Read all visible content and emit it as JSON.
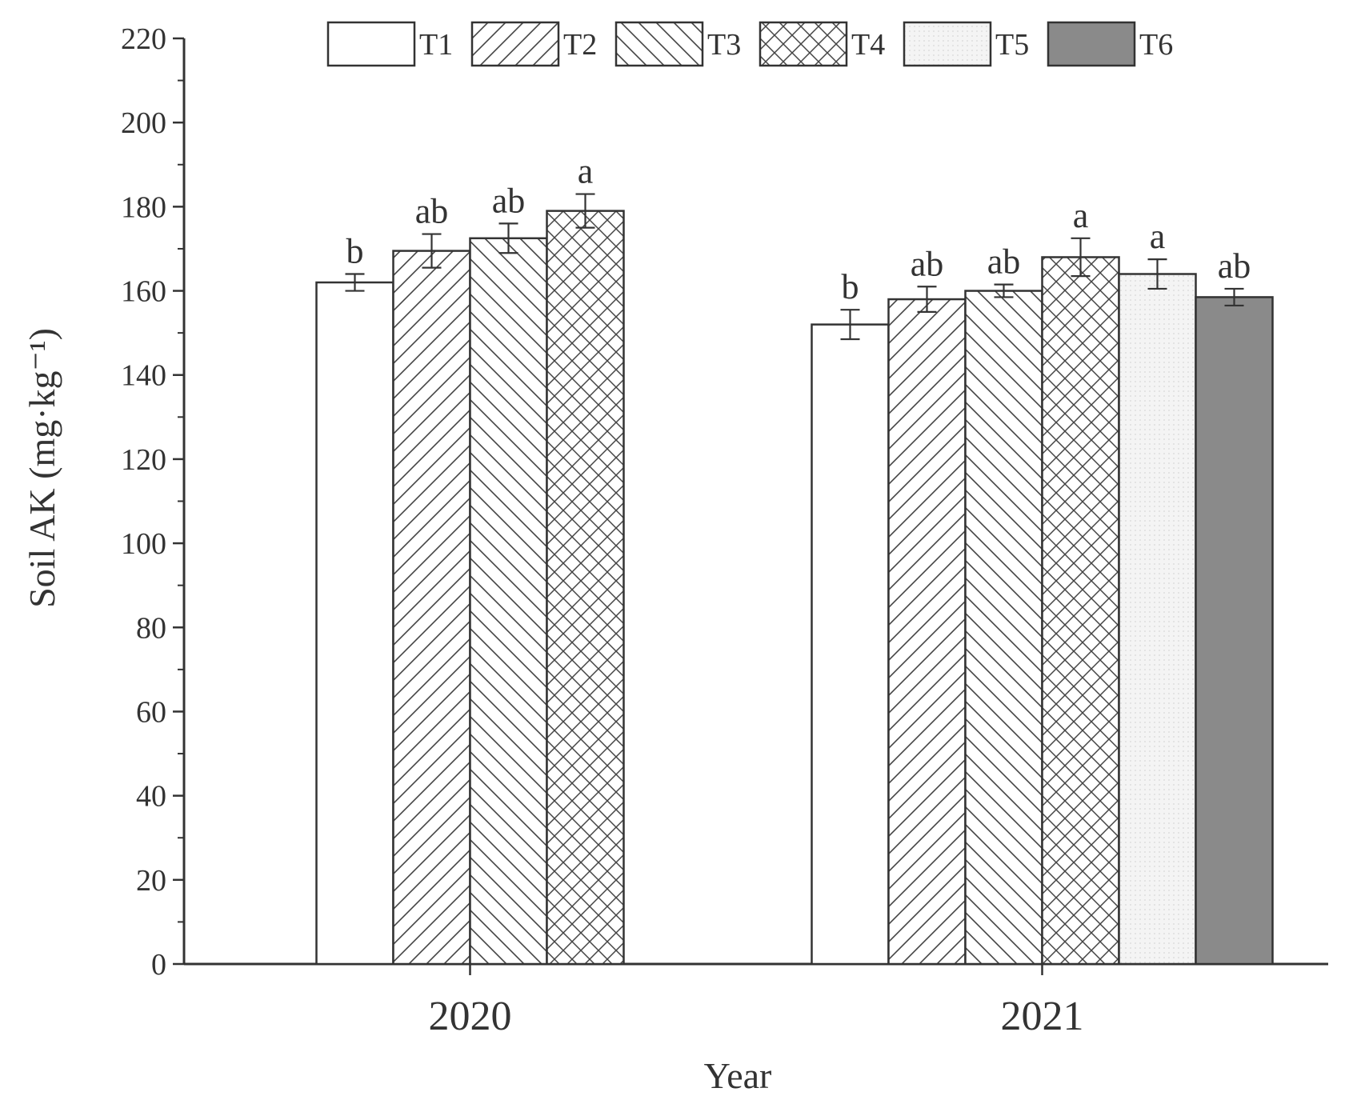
{
  "chart_data": {
    "type": "bar",
    "categories": [
      "2020",
      "2021"
    ],
    "xlabel": "Year",
    "ylabel": "Soil AK (mg·kg⁻¹)",
    "ylim": [
      0,
      220
    ],
    "yticks": [
      0,
      20,
      40,
      60,
      80,
      100,
      120,
      140,
      160,
      180,
      200,
      220
    ],
    "legend_position": "top",
    "grid": false,
    "series": [
      {
        "name": "T1",
        "values": [
          162,
          152
        ],
        "errors": [
          2,
          3.5
        ],
        "labels": [
          "b",
          "b"
        ],
        "pattern": "none",
        "fill": "#ffffff"
      },
      {
        "name": "T2",
        "values": [
          169.5,
          158
        ],
        "errors": [
          4,
          3
        ],
        "labels": [
          "ab",
          "ab"
        ],
        "pattern": "forward-diagonal",
        "fill": "#ffffff"
      },
      {
        "name": "T3",
        "values": [
          172.5,
          160
        ],
        "errors": [
          3.5,
          1.5
        ],
        "labels": [
          "ab",
          "ab"
        ],
        "pattern": "backward-diagonal",
        "fill": "#ffffff"
      },
      {
        "name": "T4",
        "values": [
          179,
          168
        ],
        "errors": [
          4,
          4.5
        ],
        "labels": [
          "a",
          "a"
        ],
        "pattern": "crosshatch",
        "fill": "#ffffff"
      },
      {
        "name": "T5",
        "values": [
          null,
          164
        ],
        "errors": [
          null,
          3.5
        ],
        "labels": [
          null,
          "a"
        ],
        "pattern": "light-dots",
        "fill": "#f4f4f4"
      },
      {
        "name": "T6",
        "values": [
          null,
          158.5
        ],
        "errors": [
          null,
          2
        ],
        "labels": [
          null,
          "ab"
        ],
        "pattern": "none",
        "fill": "#8a8a8a"
      }
    ]
  }
}
